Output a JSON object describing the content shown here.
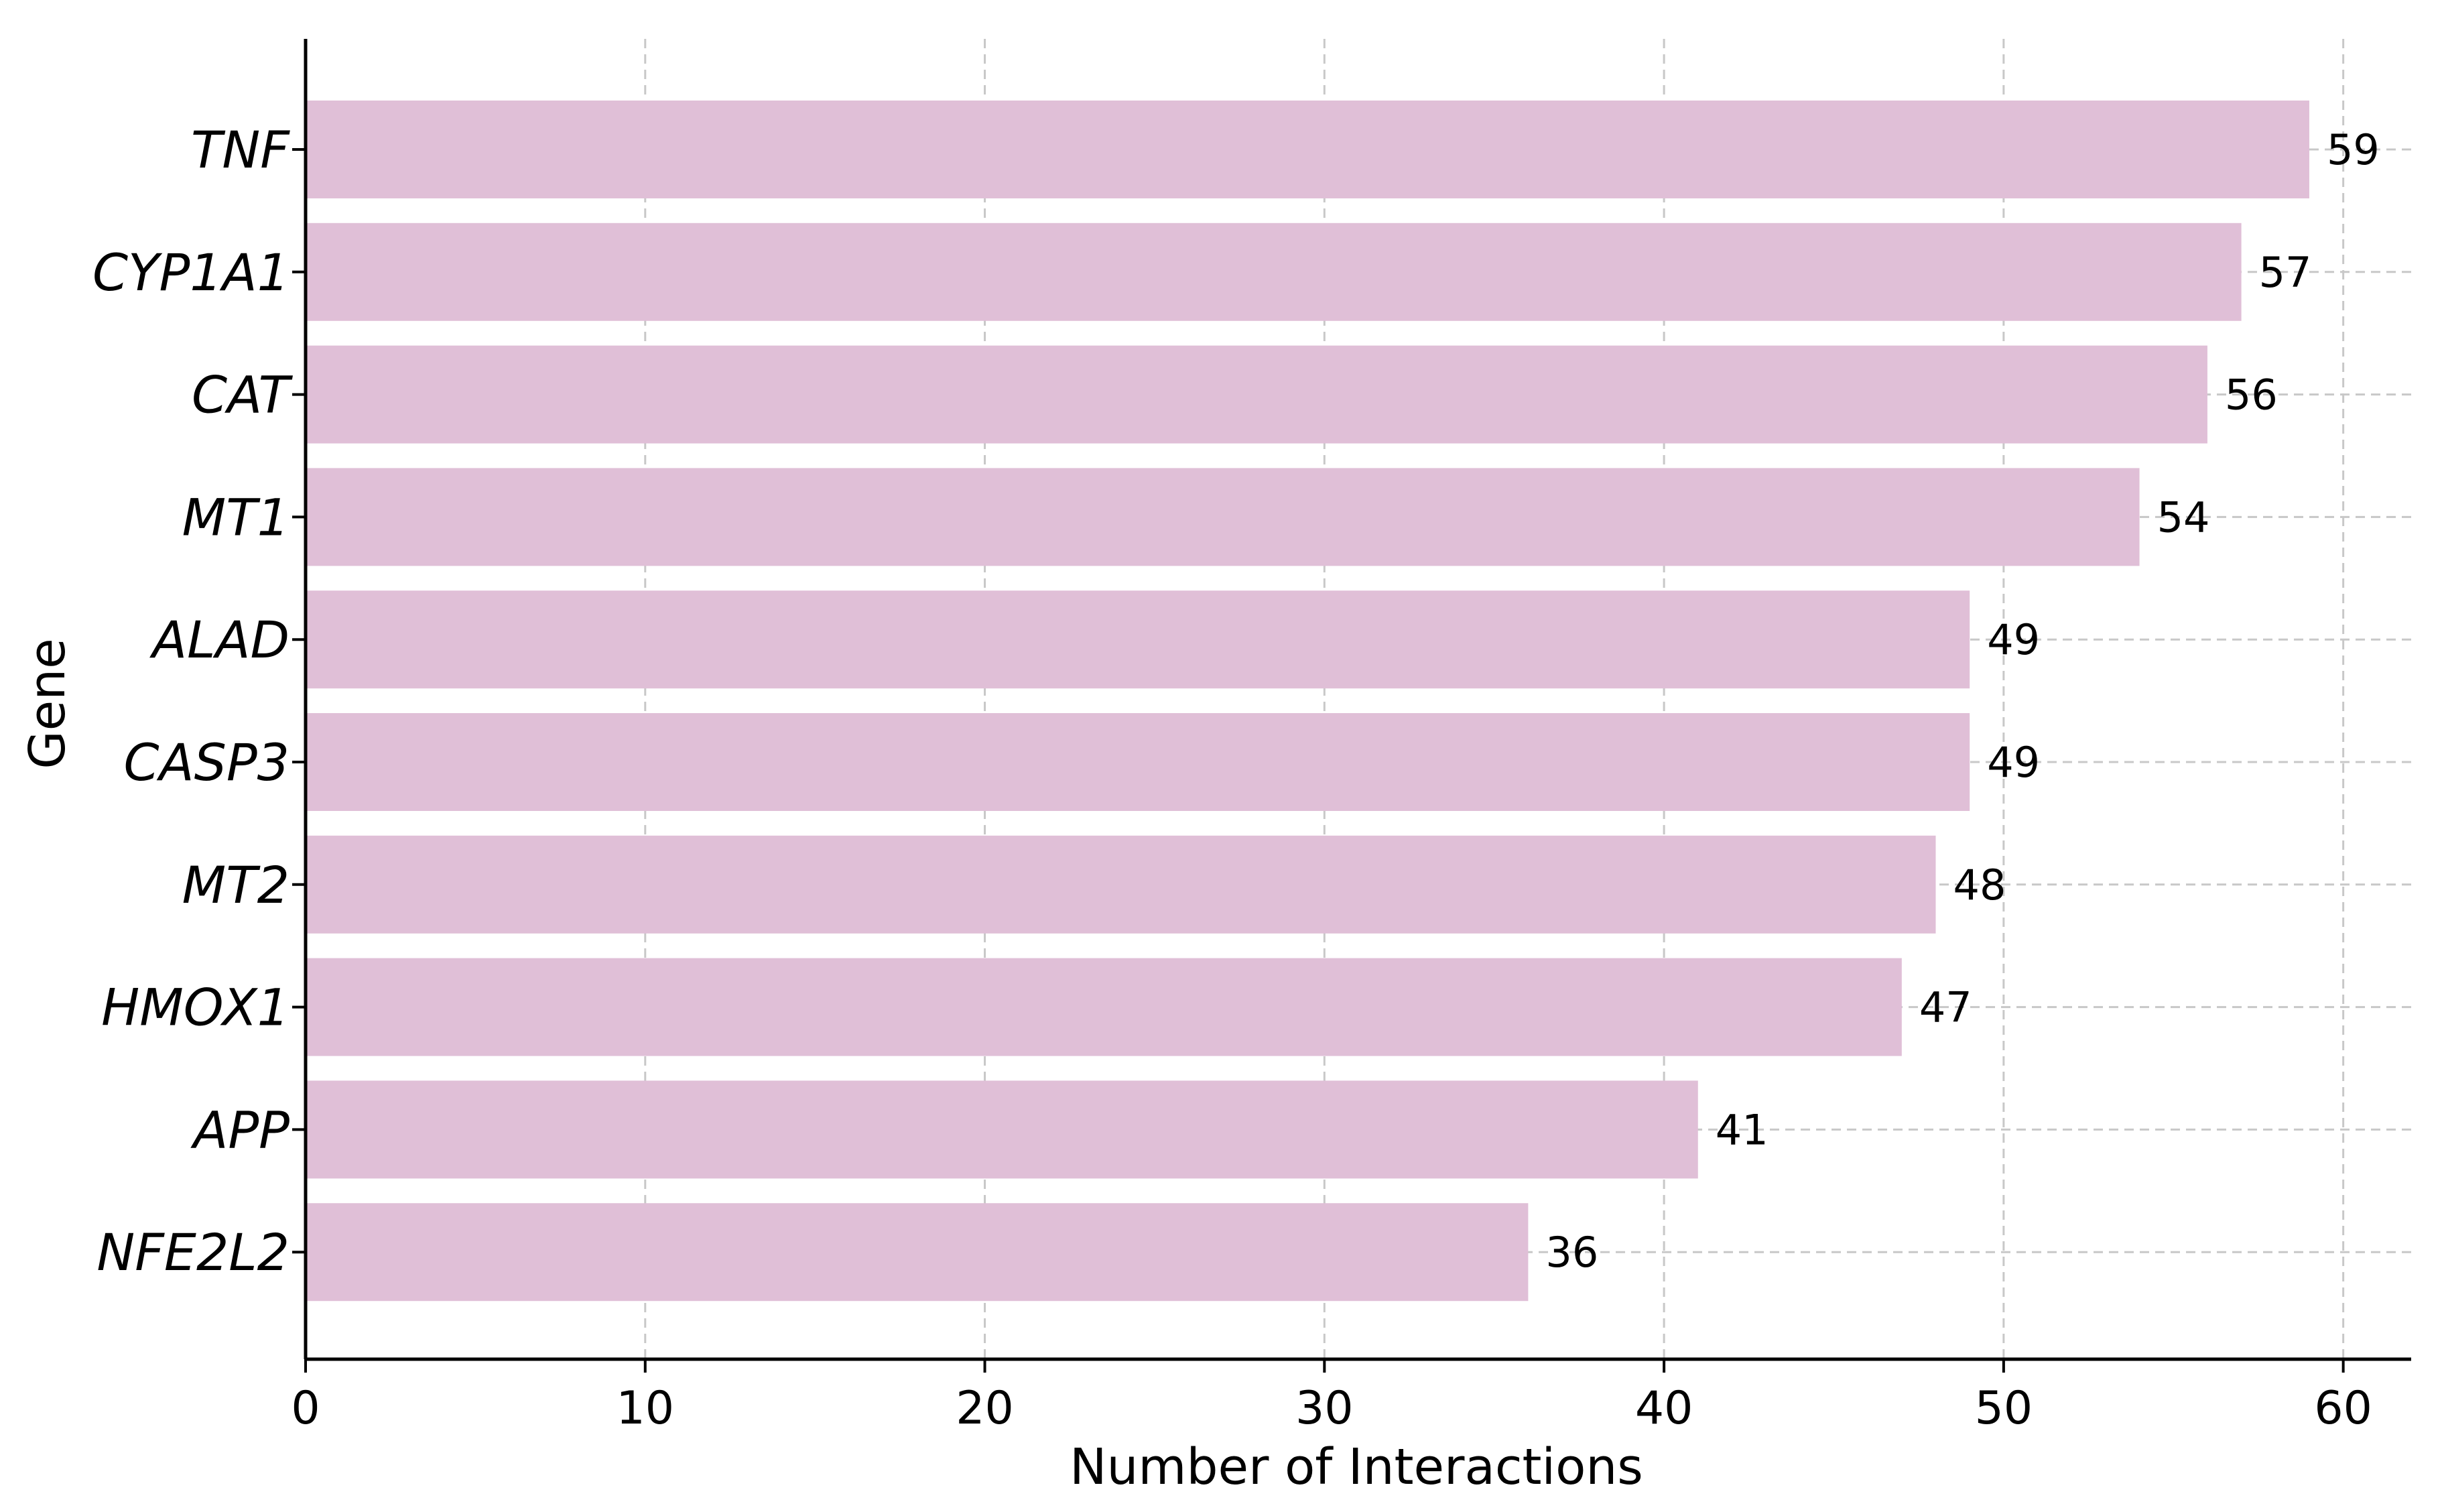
{
  "chart_data": {
    "type": "bar",
    "orientation": "horizontal",
    "title": "",
    "xlabel": "Number of Interactions",
    "ylabel": "Gene",
    "xlim": [
      0,
      62
    ],
    "xticks": [
      0,
      10,
      20,
      30,
      40,
      50,
      60
    ],
    "grid": true,
    "bar_color": "#e0bfd7",
    "categories": [
      "TNF",
      "CYP1A1",
      "CAT",
      "MT1",
      "ALAD",
      "CASP3",
      "MT2",
      "HMOX1",
      "APP",
      "NFE2L2"
    ],
    "values": [
      59,
      57,
      56,
      54,
      49,
      49,
      48,
      47,
      41,
      36
    ]
  }
}
